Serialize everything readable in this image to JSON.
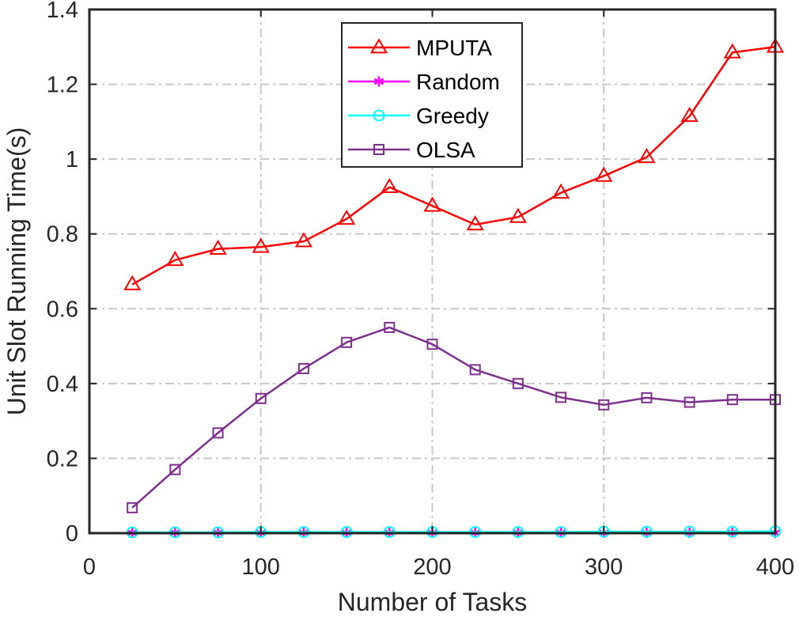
{
  "chart_data": {
    "type": "line",
    "xlabel": "Number of Tasks",
    "ylabel": "Unit Slot Running Time(s)",
    "xlim": [
      0,
      400
    ],
    "ylim": [
      0,
      1.4
    ],
    "xticks": [
      0,
      100,
      200,
      300,
      400
    ],
    "yticks": [
      0,
      0.2,
      0.4,
      0.6,
      0.8,
      1,
      1.2,
      1.4
    ],
    "grid": true,
    "legend_position": "top-center",
    "x": [
      25,
      50,
      75,
      100,
      125,
      150,
      175,
      200,
      225,
      250,
      275,
      300,
      325,
      350,
      375,
      400
    ],
    "series": [
      {
        "name": "MPUTA",
        "marker": "triangle",
        "color": "#ff0000",
        "values": [
          0.665,
          0.73,
          0.76,
          0.765,
          0.78,
          0.84,
          0.925,
          0.875,
          0.825,
          0.845,
          0.91,
          0.955,
          1.005,
          1.115,
          1.285,
          1.3
        ]
      },
      {
        "name": "Random",
        "marker": "asterisk",
        "color": "#ff00ff",
        "values": [
          0.001,
          0.001,
          0.001,
          0.001,
          0.001,
          0.001,
          0.001,
          0.001,
          0.001,
          0.001,
          0.001,
          0.001,
          0.001,
          0.001,
          0.001,
          0.001
        ]
      },
      {
        "name": "Greedy",
        "marker": "circle",
        "color": "#00ffff",
        "values": [
          0.002,
          0.002,
          0.002,
          0.003,
          0.003,
          0.003,
          0.003,
          0.003,
          0.003,
          0.003,
          0.003,
          0.004,
          0.004,
          0.004,
          0.004,
          0.005
        ]
      },
      {
        "name": "OLSA",
        "marker": "square",
        "color": "#7e2f8e",
        "values": [
          0.068,
          0.17,
          0.268,
          0.36,
          0.44,
          0.51,
          0.55,
          0.505,
          0.437,
          0.4,
          0.363,
          0.343,
          0.362,
          0.35,
          0.357,
          0.357
        ]
      }
    ]
  }
}
